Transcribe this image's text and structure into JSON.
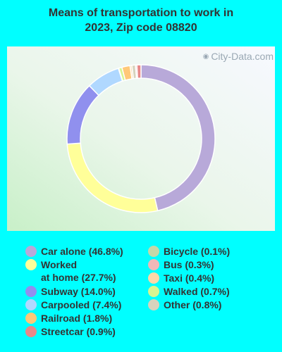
{
  "title_line1": "Means of transportation to work in",
  "title_line2": "2023, Zip code 08820",
  "watermark": "City-Data.com",
  "chart_data": {
    "type": "pie",
    "title": "Means of transportation to work in 2023, Zip code 08820",
    "legend_position": "bottom",
    "series": [
      {
        "name": "Car alone",
        "label": "Car alone (46.8%)",
        "value": 46.8,
        "color": "#b8a9d9"
      },
      {
        "name": "Worked at home",
        "label": "Worked\nat home (27.7%)",
        "value": 27.7,
        "color": "#ffff99"
      },
      {
        "name": "Subway",
        "label": "Subway (14.0%)",
        "value": 14.0,
        "color": "#9090ee"
      },
      {
        "name": "Carpooled",
        "label": "Carpooled (7.4%)",
        "value": 7.4,
        "color": "#b0d8ff"
      },
      {
        "name": "Bicycle",
        "label": "Bicycle (0.1%)",
        "value": 0.1,
        "color": "#c5d8a8"
      },
      {
        "name": "Walked",
        "label": "Walked (0.7%)",
        "value": 0.7,
        "color": "#d8f590"
      },
      {
        "name": "Railroad",
        "label": "Railroad (1.8%)",
        "value": 1.8,
        "color": "#ffc878"
      },
      {
        "name": "Taxi",
        "label": "Taxi (0.4%)",
        "value": 0.4,
        "color": "#fdd8a8"
      },
      {
        "name": "Other",
        "label": "Other (0.8%)",
        "value": 0.8,
        "color": "#d8d3bd"
      },
      {
        "name": "Bus",
        "label": "Bus (0.3%)",
        "value": 0.3,
        "color": "#f0b8b8"
      },
      {
        "name": "Streetcar",
        "label": "Streetcar (0.9%)",
        "value": 0.9,
        "color": "#e88888"
      }
    ]
  },
  "legend_columns": [
    [
      "Car alone",
      "Worked at home",
      "Subway",
      "Carpooled",
      "Railroad",
      "Streetcar"
    ],
    [
      "Bicycle",
      "Bus",
      "Taxi",
      "Walked",
      "Other"
    ]
  ]
}
